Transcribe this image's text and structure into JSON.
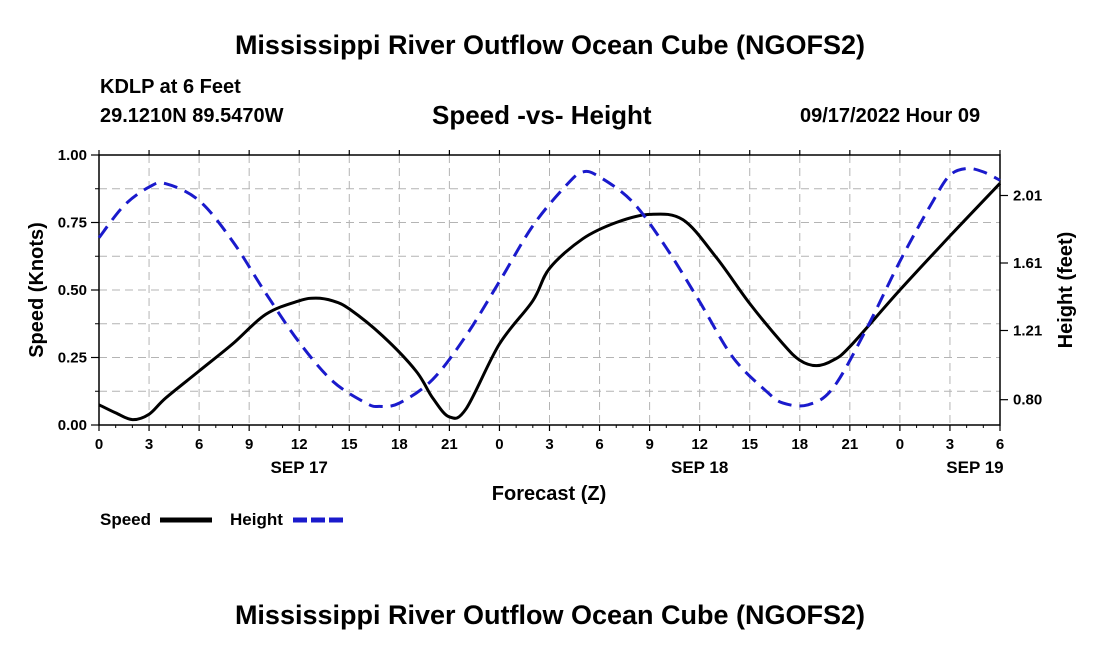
{
  "header": {
    "title": "Mississippi River Outflow Ocean Cube (NGOFS2)",
    "station": "KDLP at 6 Feet",
    "coords": "29.1210N  89.5470W",
    "subtitle": "Speed -vs- Height",
    "timestamp": "09/17/2022 Hour 09"
  },
  "footer": {
    "title": "Mississippi River Outflow Ocean Cube (NGOFS2)"
  },
  "colors": {
    "speed": "#000000",
    "height": "#1a1acc",
    "grid": "#b4b4b4"
  },
  "chart_data": {
    "type": "line",
    "xlabel": "Forecast (Z)",
    "ylabel": "Speed (Knots)",
    "y2label": "Height (feet)",
    "x_hours_range": [
      0,
      54
    ],
    "ylim": [
      0,
      1.0
    ],
    "y2lim": [
      0.65,
      2.25
    ],
    "x_ticks": [
      {
        "h": 0,
        "label": "0"
      },
      {
        "h": 3,
        "label": "3"
      },
      {
        "h": 6,
        "label": "6"
      },
      {
        "h": 9,
        "label": "9"
      },
      {
        "h": 12,
        "label": "12"
      },
      {
        "h": 15,
        "label": "15"
      },
      {
        "h": 18,
        "label": "18"
      },
      {
        "h": 21,
        "label": "21"
      },
      {
        "h": 24,
        "label": "0"
      },
      {
        "h": 27,
        "label": "3"
      },
      {
        "h": 30,
        "label": "6"
      },
      {
        "h": 33,
        "label": "9"
      },
      {
        "h": 36,
        "label": "12"
      },
      {
        "h": 39,
        "label": "15"
      },
      {
        "h": 42,
        "label": "18"
      },
      {
        "h": 45,
        "label": "21"
      },
      {
        "h": 48,
        "label": "0"
      },
      {
        "h": 51,
        "label": "3"
      },
      {
        "h": 54,
        "label": "6"
      }
    ],
    "date_labels": [
      {
        "h": 12,
        "label": "SEP 17"
      },
      {
        "h": 36,
        "label": "SEP 18"
      },
      {
        "h": 52.5,
        "label": "SEP 19"
      }
    ],
    "y_ticks": [
      {
        "v": 0.0,
        "label": "0.00"
      },
      {
        "v": 0.25,
        "label": "0.25"
      },
      {
        "v": 0.5,
        "label": "0.50"
      },
      {
        "v": 0.75,
        "label": "0.75"
      },
      {
        "v": 1.0,
        "label": "1.00"
      }
    ],
    "y2_ticks": [
      {
        "v": 0.8,
        "label": "0.80"
      },
      {
        "v": 1.21,
        "label": "1.21"
      },
      {
        "v": 1.61,
        "label": "1.61"
      },
      {
        "v": 2.01,
        "label": "2.01"
      }
    ],
    "series": [
      {
        "name": "Speed",
        "axis": "left",
        "style": "solid",
        "points": [
          [
            0,
            0.075
          ],
          [
            1,
            0.045
          ],
          [
            2,
            0.02
          ],
          [
            3,
            0.04
          ],
          [
            4,
            0.1
          ],
          [
            6,
            0.2
          ],
          [
            8,
            0.3
          ],
          [
            10,
            0.41
          ],
          [
            12,
            0.46
          ],
          [
            13,
            0.47
          ],
          [
            14,
            0.46
          ],
          [
            15,
            0.43
          ],
          [
            17,
            0.33
          ],
          [
            19,
            0.2
          ],
          [
            20,
            0.1
          ],
          [
            21,
            0.03
          ],
          [
            22,
            0.06
          ],
          [
            24,
            0.3
          ],
          [
            26,
            0.46
          ],
          [
            27,
            0.58
          ],
          [
            29,
            0.69
          ],
          [
            31,
            0.75
          ],
          [
            33,
            0.78
          ],
          [
            35,
            0.76
          ],
          [
            37,
            0.62
          ],
          [
            39,
            0.45
          ],
          [
            41,
            0.3
          ],
          [
            42,
            0.24
          ],
          [
            43,
            0.22
          ],
          [
            44,
            0.24
          ],
          [
            45,
            0.29
          ],
          [
            48,
            0.5
          ],
          [
            51,
            0.7
          ],
          [
            54,
            0.895
          ]
        ]
      },
      {
        "name": "Height",
        "axis": "right",
        "style": "dashed",
        "points": [
          [
            0,
            1.76
          ],
          [
            1.5,
            1.95
          ],
          [
            3,
            2.06
          ],
          [
            4,
            2.08
          ],
          [
            6,
            1.98
          ],
          [
            8,
            1.74
          ],
          [
            10,
            1.43
          ],
          [
            12,
            1.14
          ],
          [
            14,
            0.91
          ],
          [
            16,
            0.78
          ],
          [
            16.8,
            0.76
          ],
          [
            18,
            0.78
          ],
          [
            20,
            0.92
          ],
          [
            22,
            1.18
          ],
          [
            24,
            1.5
          ],
          [
            26,
            1.83
          ],
          [
            28,
            2.07
          ],
          [
            29,
            2.15
          ],
          [
            30,
            2.12
          ],
          [
            32,
            1.97
          ],
          [
            34,
            1.7
          ],
          [
            36,
            1.38
          ],
          [
            38,
            1.05
          ],
          [
            40,
            0.85
          ],
          [
            41,
            0.78
          ],
          [
            42.5,
            0.77
          ],
          [
            44,
            0.87
          ],
          [
            46,
            1.22
          ],
          [
            48,
            1.62
          ],
          [
            50,
            1.98
          ],
          [
            51,
            2.13
          ],
          [
            52,
            2.17
          ],
          [
            53,
            2.15
          ],
          [
            54,
            2.1
          ]
        ]
      }
    ],
    "legend": [
      {
        "name": "Speed",
        "style": "solid"
      },
      {
        "name": "Height",
        "style": "dashed"
      }
    ]
  }
}
